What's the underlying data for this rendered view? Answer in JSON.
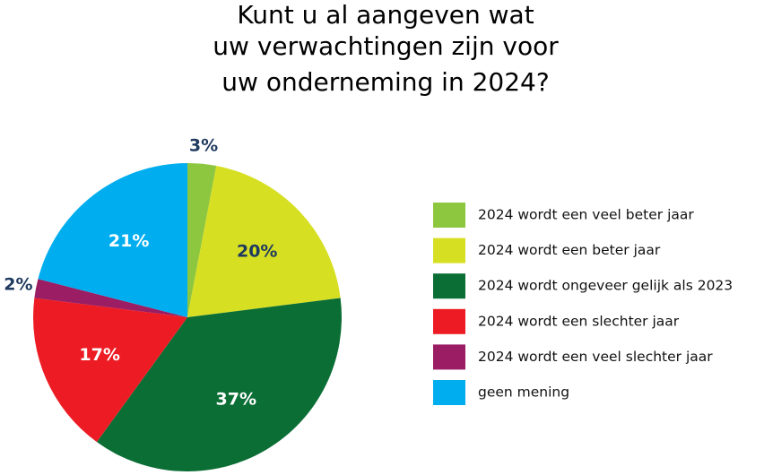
{
  "chart_data": {
    "type": "pie",
    "title": [
      "Kunt u al aangeven wat",
      "uw verwachtingen zijn voor",
      "uw onderneming in 2024?"
    ],
    "categories": [
      "2024 wordt een veel beter jaar",
      "2024 wordt een beter jaar",
      "2024 wordt ongeveer gelijk als 2023",
      "2024 wordt een slechter jaar",
      "2024 wordt een veel slechter jaar",
      "geen mening"
    ],
    "values": [
      3,
      20,
      37,
      17,
      2,
      21
    ],
    "value_labels": [
      "3%",
      "20%",
      "37%",
      "17%",
      "2%",
      "21%"
    ],
    "colors": [
      "#8dc63f",
      "#d7df23",
      "#0b6e35",
      "#ed1c24",
      "#9b1d63",
      "#00aeef"
    ],
    "legend": "right"
  }
}
